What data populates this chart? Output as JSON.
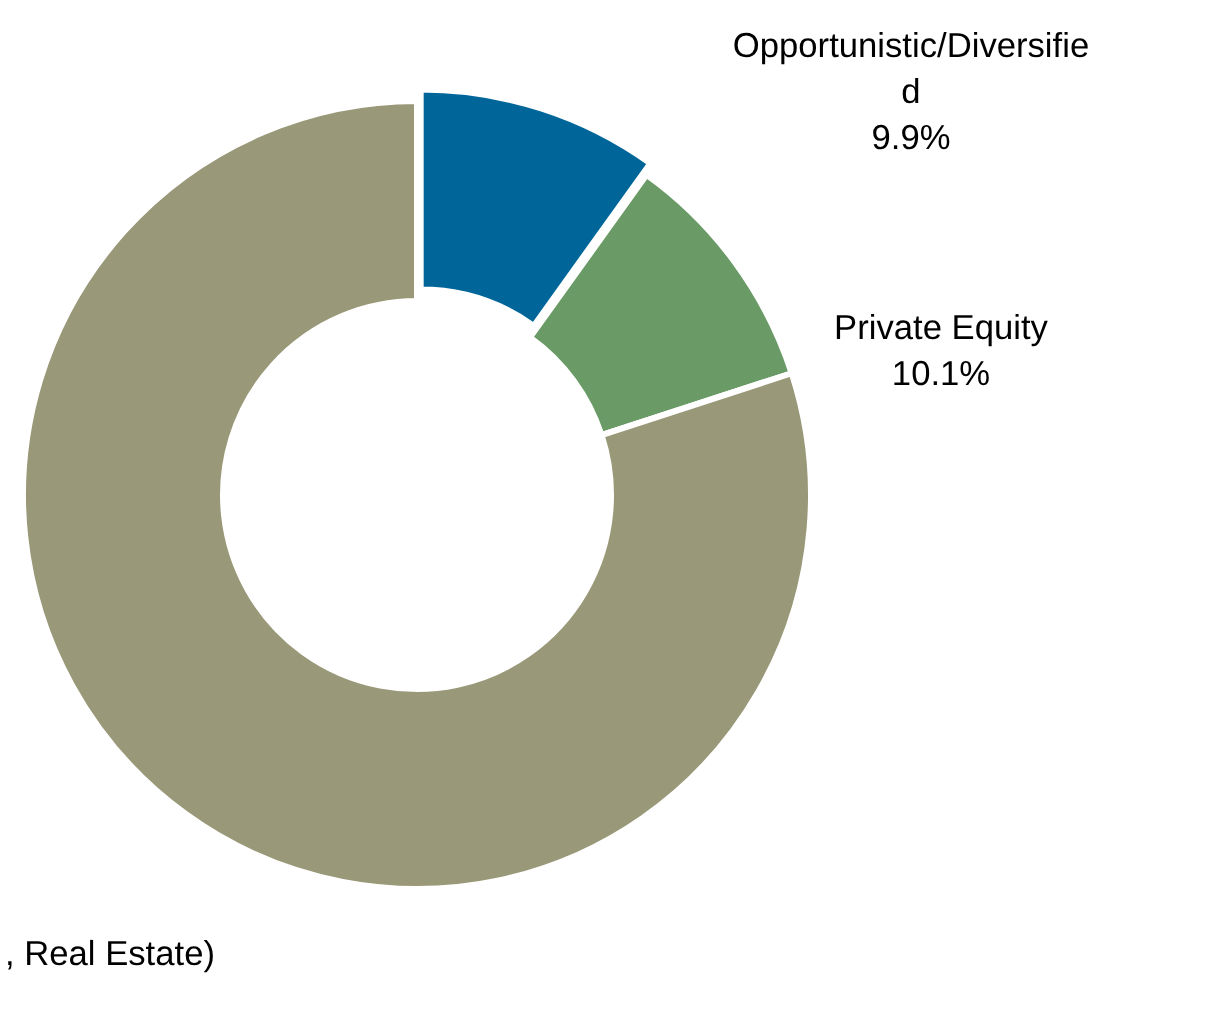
{
  "chart_data": {
    "type": "donut",
    "categories": [
      "Opportunistic/Diversified",
      "Private Equity",
      ", Real Estate)"
    ],
    "values": [
      9.9,
      10.1,
      80.0
    ],
    "value_labels": [
      "9.9%",
      "10.1%",
      null
    ],
    "colors": [
      "#00669a",
      "#6a9a66",
      "#999878"
    ]
  }
}
